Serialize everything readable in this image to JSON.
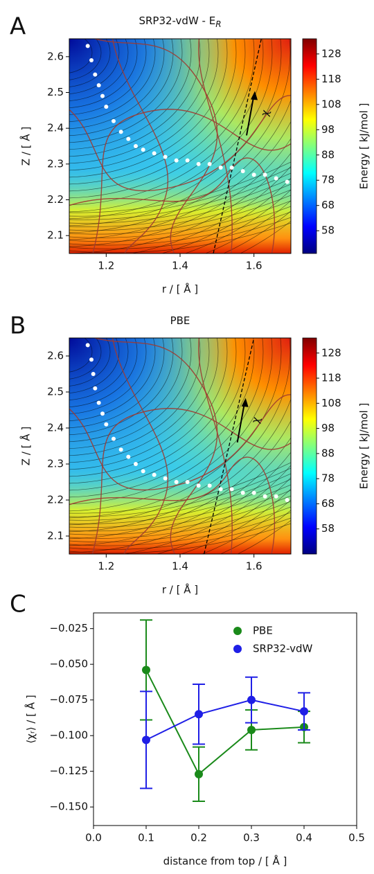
{
  "chart_data": [
    {
      "type": "contour",
      "panel": "A",
      "title": "SRP32-vdW - E",
      "title_subscript": "R",
      "xlabel": "r / [ Å ]",
      "ylabel": "Z / [ Å ]",
      "clabel": "Energy [ kJ/mol ]",
      "xlim": [
        1.1,
        1.7
      ],
      "ylim": [
        2.05,
        2.65
      ],
      "xticks": [
        1.2,
        1.4,
        1.6
      ],
      "yticks": [
        2.1,
        2.2,
        2.3,
        2.4,
        2.5,
        2.6
      ],
      "clim": [
        49,
        134
      ],
      "cticks": [
        58,
        68,
        78,
        88,
        98,
        108,
        118,
        128
      ],
      "arrow_label": "χ",
      "series": [
        {
          "color": "#ffffff",
          "x": [
            1.15,
            1.16,
            1.17,
            1.18,
            1.19,
            1.2,
            1.22,
            1.24,
            1.26,
            1.28,
            1.3,
            1.33,
            1.36,
            1.39,
            1.42,
            1.45,
            1.48,
            1.51,
            1.54,
            1.57,
            1.6,
            1.63,
            1.66,
            1.69
          ],
          "y": [
            2.63,
            2.59,
            2.55,
            2.52,
            2.49,
            2.46,
            2.42,
            2.39,
            2.37,
            2.35,
            2.34,
            2.33,
            2.32,
            2.31,
            2.31,
            2.3,
            2.3,
            2.29,
            2.29,
            2.28,
            2.27,
            2.27,
            2.26,
            2.25
          ]
        }
      ]
    },
    {
      "type": "contour",
      "panel": "B",
      "title": "PBE",
      "xlabel": "r / [ Å ]",
      "ylabel": "Z / [ Å ]",
      "clabel": "Energy [ kJ/mol ]",
      "xlim": [
        1.1,
        1.7
      ],
      "ylim": [
        2.05,
        2.65
      ],
      "xticks": [
        1.2,
        1.4,
        1.6
      ],
      "yticks": [
        2.1,
        2.2,
        2.3,
        2.4,
        2.5,
        2.6
      ],
      "clim": [
        48,
        134
      ],
      "cticks": [
        58,
        68,
        78,
        88,
        98,
        108,
        118,
        128
      ],
      "arrow_label": "χ",
      "series": [
        {
          "color": "#ffffff",
          "x": [
            1.15,
            1.16,
            1.165,
            1.17,
            1.18,
            1.19,
            1.2,
            1.22,
            1.24,
            1.26,
            1.28,
            1.3,
            1.33,
            1.36,
            1.39,
            1.42,
            1.45,
            1.48,
            1.51,
            1.54,
            1.57,
            1.6,
            1.63,
            1.66,
            1.69
          ],
          "y": [
            2.63,
            2.59,
            2.55,
            2.51,
            2.47,
            2.44,
            2.41,
            2.37,
            2.34,
            2.32,
            2.3,
            2.28,
            2.27,
            2.26,
            2.25,
            2.25,
            2.24,
            2.24,
            2.23,
            2.23,
            2.22,
            2.22,
            2.21,
            2.21,
            2.2
          ]
        }
      ]
    },
    {
      "type": "errorline",
      "panel": "C",
      "xlabel": "distance from top / [ Å ]",
      "ylabel": "⟨χᵣ⟩ / [ Å ]",
      "x": [
        0.1,
        0.2,
        0.3,
        0.4
      ],
      "xlim": [
        0,
        0.5
      ],
      "xticks": [
        {
          "value": 0,
          "label": "0.0"
        },
        0.1,
        0.2,
        0.3,
        0.4,
        0.5
      ],
      "ylim": [
        -0.163,
        -0.014
      ],
      "yticks": [
        {
          "value": -0.025,
          "label": "−0.025"
        },
        {
          "value": -0.05,
          "label": "−0.050"
        },
        {
          "value": -0.075,
          "label": "−0.075"
        },
        {
          "value": -0.1,
          "label": "−0.100"
        },
        {
          "value": -0.125,
          "label": "−0.125"
        },
        {
          "value": -0.15,
          "label": "−0.150"
        }
      ],
      "legend": "upper right",
      "series": [
        {
          "name": "PBE",
          "color": "#1a8a1a",
          "values": [
            -0.054,
            -0.127,
            -0.096,
            -0.094
          ],
          "errors": [
            0.035,
            0.019,
            0.014,
            0.011
          ]
        },
        {
          "name": "SRP32-vdW",
          "color": "#1f1fe6",
          "values": [
            -0.103,
            -0.085,
            -0.075,
            -0.083
          ],
          "errors": [
            0.034,
            0.021,
            0.016,
            0.013
          ]
        }
      ]
    }
  ]
}
